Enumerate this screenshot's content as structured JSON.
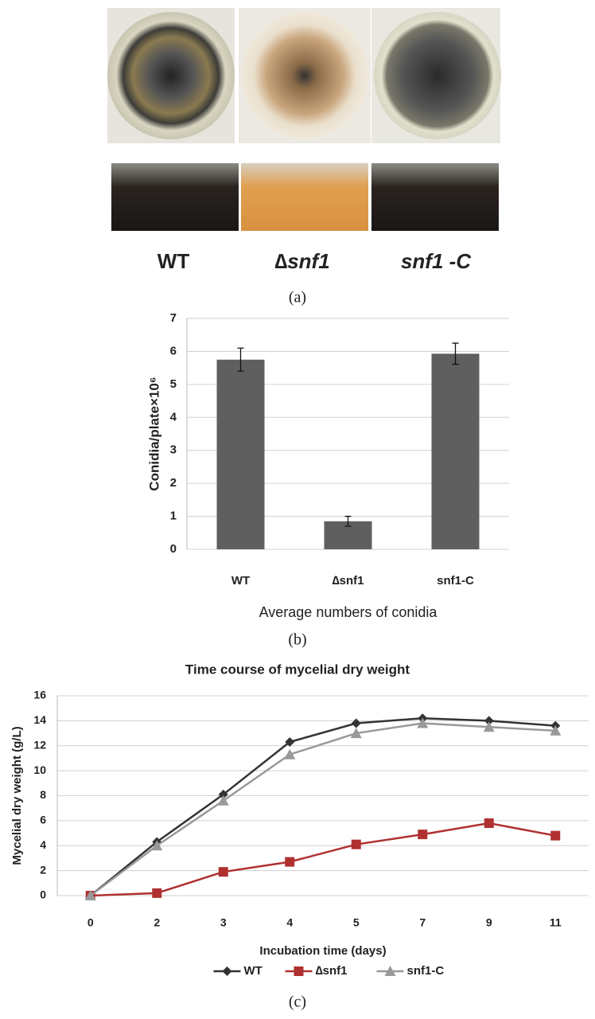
{
  "figure": {
    "strain_labels": [
      "WT",
      "∆snf1",
      "snf1 -C"
    ],
    "panel_labels": [
      "(a)",
      "(b)",
      "(c)"
    ]
  },
  "chart_data": [
    {
      "type": "bar",
      "xlabel": "Average numbers of conidia",
      "ylabel": "Conidia/plate×10⁶",
      "categories": [
        "WT",
        "∆snf1",
        "snf1-C"
      ],
      "values": [
        5.75,
        0.85,
        5.93
      ],
      "errors": [
        0.35,
        0.15,
        0.32
      ],
      "color": "#5f5f5f",
      "ylim": [
        0,
        7
      ],
      "yticks": [
        0,
        1,
        2,
        3,
        4,
        5,
        6,
        7
      ],
      "grid": true
    },
    {
      "type": "line",
      "title": "Time course of mycelial dry weight",
      "xlabel": "Incubation time (days)",
      "ylabel": "Mycelial dry weight (g/L)",
      "categories": [
        "0",
        "2",
        "3",
        "4",
        "5",
        "7",
        "9",
        "11"
      ],
      "series": [
        {
          "name": "WT",
          "color": "#333333",
          "marker": "diamond",
          "values": [
            0,
            4.3,
            8.1,
            12.3,
            13.8,
            14.2,
            14.0,
            13.6
          ]
        },
        {
          "name": "∆snf1",
          "color": "#b03030",
          "marker": "square",
          "values": [
            0,
            0.2,
            1.9,
            2.7,
            4.1,
            4.9,
            5.8,
            4.8
          ]
        },
        {
          "name": "snf1-C",
          "color": "#999999",
          "marker": "triangle",
          "values": [
            0,
            4.0,
            7.6,
            11.3,
            13.0,
            13.8,
            13.5,
            13.2
          ]
        }
      ],
      "ylim": [
        0,
        16
      ],
      "yticks": [
        0,
        2,
        4,
        6,
        8,
        10,
        12,
        14,
        16
      ],
      "grid": true,
      "legend": "bottom"
    }
  ]
}
